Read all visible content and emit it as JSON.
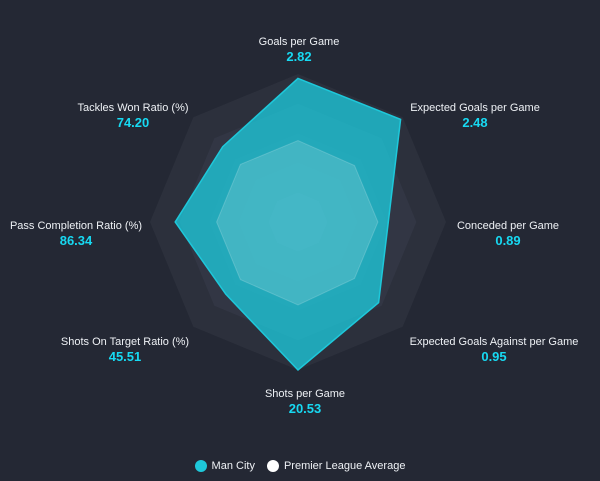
{
  "chart_data": {
    "type": "radar",
    "axes": [
      {
        "name": "Goals per Game",
        "display": "2.82"
      },
      {
        "name": "Expected Goals per Game",
        "display": "2.48"
      },
      {
        "name": "Conceded per Game",
        "display": "0.89"
      },
      {
        "name": "Expected Goals Against per Game",
        "display": "0.95"
      },
      {
        "name": "Shots per Game",
        "display": "20.53"
      },
      {
        "name": "Shots On Target Ratio (%)",
        "display": "45.51"
      },
      {
        "name": "Pass Completion Ratio (%)",
        "display": "86.34"
      },
      {
        "name": "Tackles Won Ratio (%)",
        "display": "74.20"
      }
    ],
    "rings": 5,
    "series": [
      {
        "name": "Man City",
        "color": "#1ec8da",
        "values": [
          2.82,
          2.48,
          0.89,
          0.95,
          20.53,
          45.51,
          86.34,
          74.2
        ],
        "radius_fraction": [
          0.97,
          0.98,
          0.61,
          0.77,
          1.0,
          0.69,
          0.83,
          0.72
        ]
      },
      {
        "name": "Premier League Average",
        "color": "#ffffff",
        "radius_fraction": [
          0.55,
          0.54,
          0.54,
          0.54,
          0.56,
          0.55,
          0.55,
          0.55
        ]
      }
    ]
  }
}
